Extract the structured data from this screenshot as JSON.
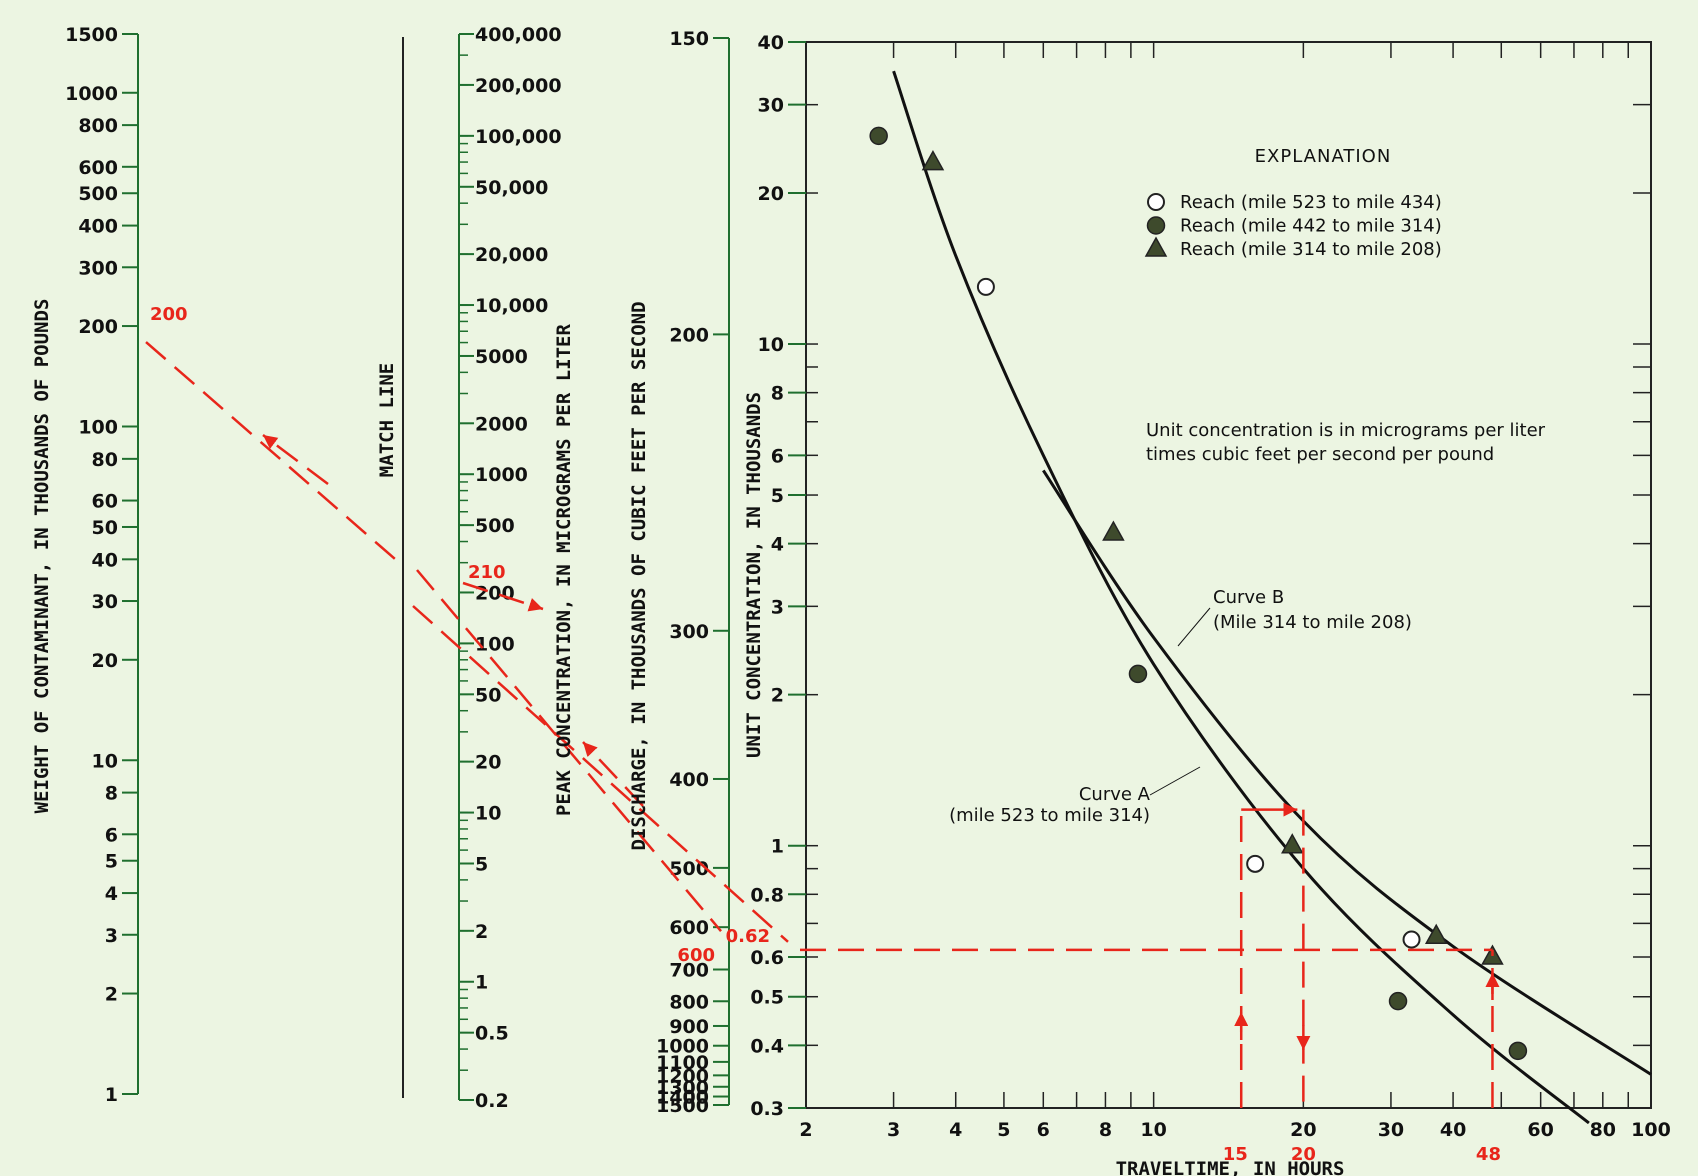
{
  "chart_data": [
    {
      "type": "nomograph",
      "scales": [
        {
          "id": "weight",
          "label": "WEIGHT OF CONTAMINANT, IN THOUSANDS OF POUNDS",
          "log": true,
          "range": [
            1,
            1500
          ],
          "ticks": [
            {
              "value": 1500,
              "label": "1500"
            },
            {
              "value": 1000,
              "label": "1000"
            },
            {
              "value": 800,
              "label": "800"
            },
            {
              "value": 600,
              "label": "600"
            },
            {
              "value": 500,
              "label": "500"
            },
            {
              "value": 400,
              "label": "400"
            },
            {
              "value": 300,
              "label": "300"
            },
            {
              "value": 200,
              "label": "200"
            },
            {
              "value": 100,
              "label": "100"
            },
            {
              "value": 80,
              "label": "80"
            },
            {
              "value": 60,
              "label": "60"
            },
            {
              "value": 50,
              "label": "50"
            },
            {
              "value": 40,
              "label": "40"
            },
            {
              "value": 30,
              "label": "30"
            },
            {
              "value": 20,
              "label": "20"
            },
            {
              "value": 10,
              "label": "10"
            },
            {
              "value": 8,
              "label": "8"
            },
            {
              "value": 6,
              "label": "6"
            },
            {
              "value": 5,
              "label": "5"
            },
            {
              "value": 4,
              "label": "4"
            },
            {
              "value": 3,
              "label": "3"
            },
            {
              "value": 2,
              "label": "2"
            },
            {
              "value": 1,
              "label": "1"
            }
          ]
        },
        {
          "id": "match",
          "label": "MATCH LINE"
        },
        {
          "id": "peak",
          "label": "PEAK CONCENTRATION, IN MICROGRAMS PER LITER",
          "log": true,
          "range": [
            0.2,
            400000
          ],
          "ticks": [
            {
              "value": 400000,
              "label": "400,000"
            },
            {
              "value": 200000,
              "label": "200,000"
            },
            {
              "value": 100000,
              "label": "100,000"
            },
            {
              "value": 50000,
              "label": "50,000"
            },
            {
              "value": 20000,
              "label": "20,000"
            },
            {
              "value": 10000,
              "label": "10,000"
            },
            {
              "value": 5000,
              "label": "5000"
            },
            {
              "value": 2000,
              "label": "2000"
            },
            {
              "value": 1000,
              "label": "1000"
            },
            {
              "value": 500,
              "label": "500"
            },
            {
              "value": 200,
              "label": "200"
            },
            {
              "value": 100,
              "label": "100"
            },
            {
              "value": 50,
              "label": "50"
            },
            {
              "value": 20,
              "label": "20"
            },
            {
              "value": 10,
              "label": "10"
            },
            {
              "value": 5,
              "label": "5"
            },
            {
              "value": 2,
              "label": "2"
            },
            {
              "value": 1,
              "label": "1"
            },
            {
              "value": 0.5,
              "label": "0.5"
            },
            {
              "value": 0.2,
              "label": "0.2"
            }
          ]
        },
        {
          "id": "discharge",
          "label": "DISCHARGE, IN THOUSANDS OF CUBIC FEET PER SECOND",
          "reciprocal": true,
          "range": [
            150,
            1500
          ],
          "ticks": [
            {
              "value": 150,
              "label": "150"
            },
            {
              "value": 200,
              "label": "200"
            },
            {
              "value": 300,
              "label": "300"
            },
            {
              "value": 400,
              "label": "400"
            },
            {
              "value": 500,
              "label": "500"
            },
            {
              "value": 600,
              "label": "600"
            },
            {
              "value": 700,
              "label": "700"
            },
            {
              "value": 800,
              "label": "800"
            },
            {
              "value": 900,
              "label": "900"
            },
            {
              "value": 1000,
              "label": "1000"
            },
            {
              "value": 1100,
              "label": "1100"
            },
            {
              "value": 1200,
              "label": "1200"
            },
            {
              "value": 1300,
              "label": "1300"
            },
            {
              "value": 1400,
              "label": "1400"
            },
            {
              "value": 1500,
              "label": "1500"
            }
          ]
        }
      ],
      "example": {
        "weight": 200,
        "weight_label": "200",
        "peak": 210,
        "peak_label": "210",
        "discharge": 600,
        "discharge_label": "600",
        "unit_concentration": 0.62,
        "unit_label": "0.62"
      }
    },
    {
      "type": "scatter",
      "xlabel": "TRAVELTIME, IN HOURS",
      "ylabel": "UNIT CONCENTRATION, IN THOUSANDS",
      "xscale": "log",
      "yscale": "log",
      "xlim": [
        2,
        100
      ],
      "ylim": [
        0.3,
        40
      ],
      "xticks": [
        {
          "value": 2,
          "label": "2"
        },
        {
          "value": 3,
          "label": "3"
        },
        {
          "value": 4,
          "label": "4"
        },
        {
          "value": 5,
          "label": "5"
        },
        {
          "value": 6,
          "label": "6"
        },
        {
          "value": 8,
          "label": "8"
        },
        {
          "value": 10,
          "label": "10"
        },
        {
          "value": 20,
          "label": "20"
        },
        {
          "value": 30,
          "label": "30"
        },
        {
          "value": 40,
          "label": "40"
        },
        {
          "value": 60,
          "label": "60"
        },
        {
          "value": 80,
          "label": "80"
        },
        {
          "value": 100,
          "label": "100"
        }
      ],
      "yticks": [
        {
          "value": 40,
          "label": "40"
        },
        {
          "value": 30,
          "label": "30"
        },
        {
          "value": 20,
          "label": "20"
        },
        {
          "value": 10,
          "label": "10"
        },
        {
          "value": 8,
          "label": "8"
        },
        {
          "value": 6,
          "label": "6"
        },
        {
          "value": 5,
          "label": "5"
        },
        {
          "value": 4,
          "label": "4"
        },
        {
          "value": 3,
          "label": "3"
        },
        {
          "value": 2,
          "label": "2"
        },
        {
          "value": 1,
          "label": "1"
        },
        {
          "value": 0.8,
          "label": "0.8"
        },
        {
          "value": 0.6,
          "label": "0.6"
        },
        {
          "value": 0.5,
          "label": "0.5"
        },
        {
          "value": 0.4,
          "label": "0.4"
        },
        {
          "value": 0.3,
          "label": "0.3"
        }
      ],
      "legend": {
        "title": "EXPLANATION",
        "entries": [
          {
            "marker": "open-circle",
            "label": "Reach (mile 523 to mile 434)"
          },
          {
            "marker": "filled-circle",
            "label": "Reach (mile 442 to mile 314)"
          },
          {
            "marker": "filled-triangle",
            "label": "Reach (mile 314 to mile 208)"
          }
        ],
        "placement": "top-right"
      },
      "note": [
        "Unit concentration is in micrograms per liter",
        "times cubic feet per second per pound"
      ],
      "series": [
        {
          "name": "Reach (mile 523 to mile 434)",
          "marker": "open-circle",
          "points": [
            {
              "x": 4.6,
              "y": 13
            },
            {
              "x": 16,
              "y": 0.92
            },
            {
              "x": 33,
              "y": 0.65
            }
          ]
        },
        {
          "name": "Reach (mile 442 to mile 314)",
          "marker": "filled-circle",
          "points": [
            {
              "x": 2.8,
              "y": 26
            },
            {
              "x": 9.3,
              "y": 2.2
            },
            {
              "x": 31,
              "y": 0.49
            },
            {
              "x": 54,
              "y": 0.39
            }
          ]
        },
        {
          "name": "Reach (mile 314 to mile 208)",
          "marker": "filled-triangle",
          "points": [
            {
              "x": 3.6,
              "y": 23
            },
            {
              "x": 8.3,
              "y": 4.2
            },
            {
              "x": 19,
              "y": 1.0
            },
            {
              "x": 37,
              "y": 0.66
            },
            {
              "x": 48,
              "y": 0.6
            }
          ]
        }
      ],
      "curves": [
        {
          "name": "Curve A",
          "label_lines": [
            "Curve A",
            "(mile 523 to mile 314)"
          ],
          "points": [
            {
              "x": 3,
              "y": 35
            },
            {
              "x": 4,
              "y": 15
            },
            {
              "x": 6,
              "y": 6
            },
            {
              "x": 10,
              "y": 2.3
            },
            {
              "x": 20,
              "y": 0.9
            },
            {
              "x": 40,
              "y": 0.46
            },
            {
              "x": 75,
              "y": 0.28
            }
          ]
        },
        {
          "name": "Curve B",
          "label_lines": [
            "Curve B",
            "(Mile 314 to mile 208)"
          ],
          "points": [
            {
              "x": 6,
              "y": 5.6
            },
            {
              "x": 10,
              "y": 2.6
            },
            {
              "x": 20,
              "y": 1.12
            },
            {
              "x": 40,
              "y": 0.63
            },
            {
              "x": 100,
              "y": 0.35
            }
          ]
        }
      ],
      "example": {
        "times": [
          {
            "value": 15,
            "label": "15"
          },
          {
            "value": 20,
            "label": "20"
          },
          {
            "value": 48,
            "label": "48"
          }
        ],
        "unit_concentration": 0.62
      }
    }
  ]
}
